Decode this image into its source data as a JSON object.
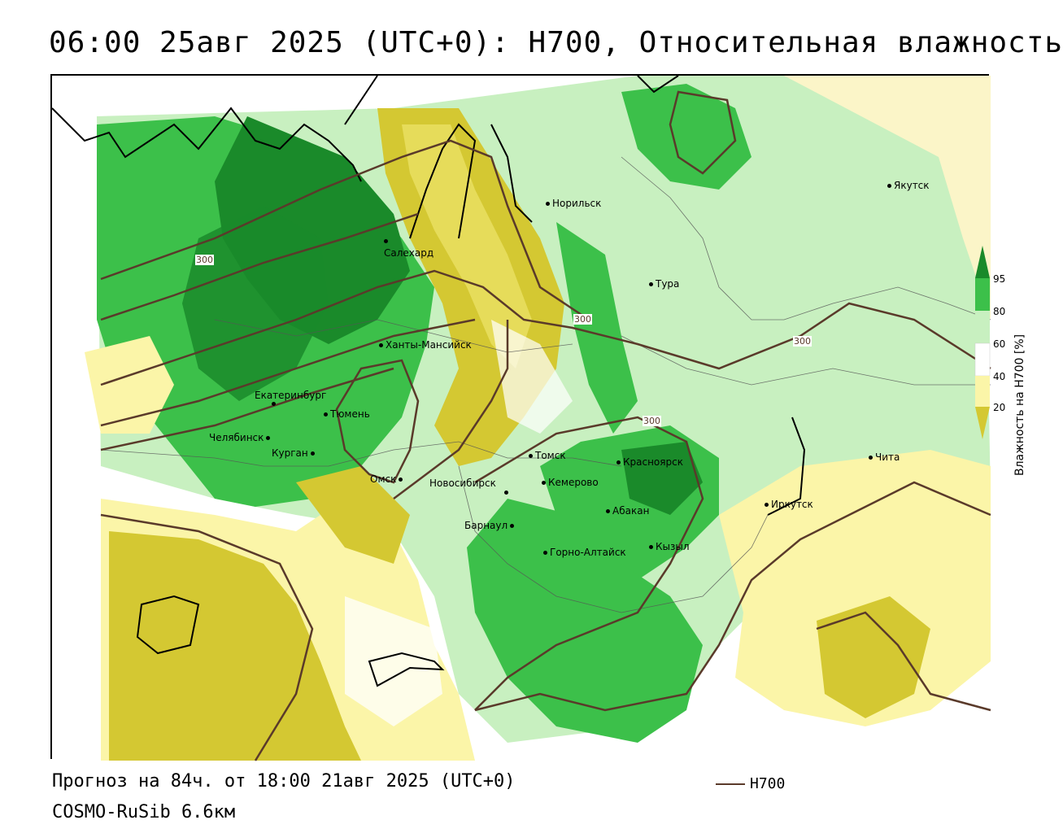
{
  "title": "06:00 25авг 2025 (UTC+0): H700, Относительная влажность",
  "footer": {
    "forecast": "Прогноз на 84ч. от 18:00 21авг 2025 (UTC+0)",
    "model": "COSMO-RuSib 6.6км"
  },
  "legend": {
    "line_label": "H700",
    "line_color": "#5a3a2a"
  },
  "colorbar": {
    "title": "Влажность на H700 [%]",
    "ticks": [
      "95",
      "80",
      "60",
      "40",
      "20"
    ],
    "colors": {
      "c95": "#1a8a2a",
      "c80": "#3cc04a",
      "c60": "#c8f0c0",
      "c40": "#fffffe",
      "c20low": "#fbf5a8",
      "c0": "#d4c832"
    }
  },
  "isohypse_labels": [
    "300",
    "300",
    "300",
    "300"
  ],
  "cities": [
    {
      "name": "Норильск"
    },
    {
      "name": "Якутск"
    },
    {
      "name": "Салехард"
    },
    {
      "name": "Тура"
    },
    {
      "name": "Ханты-Мансийск"
    },
    {
      "name": "Екатеринбург"
    },
    {
      "name": "Тюмень"
    },
    {
      "name": "Челябинск"
    },
    {
      "name": "Курган"
    },
    {
      "name": "Омск"
    },
    {
      "name": "Новосибирск"
    },
    {
      "name": "Томск"
    },
    {
      "name": "Кемерово"
    },
    {
      "name": "Красноярск"
    },
    {
      "name": "Барнаул"
    },
    {
      "name": "Абакан"
    },
    {
      "name": "Горно-Алтайск"
    },
    {
      "name": "Кызыл"
    },
    {
      "name": "Иркутск"
    },
    {
      "name": "Чита"
    }
  ]
}
